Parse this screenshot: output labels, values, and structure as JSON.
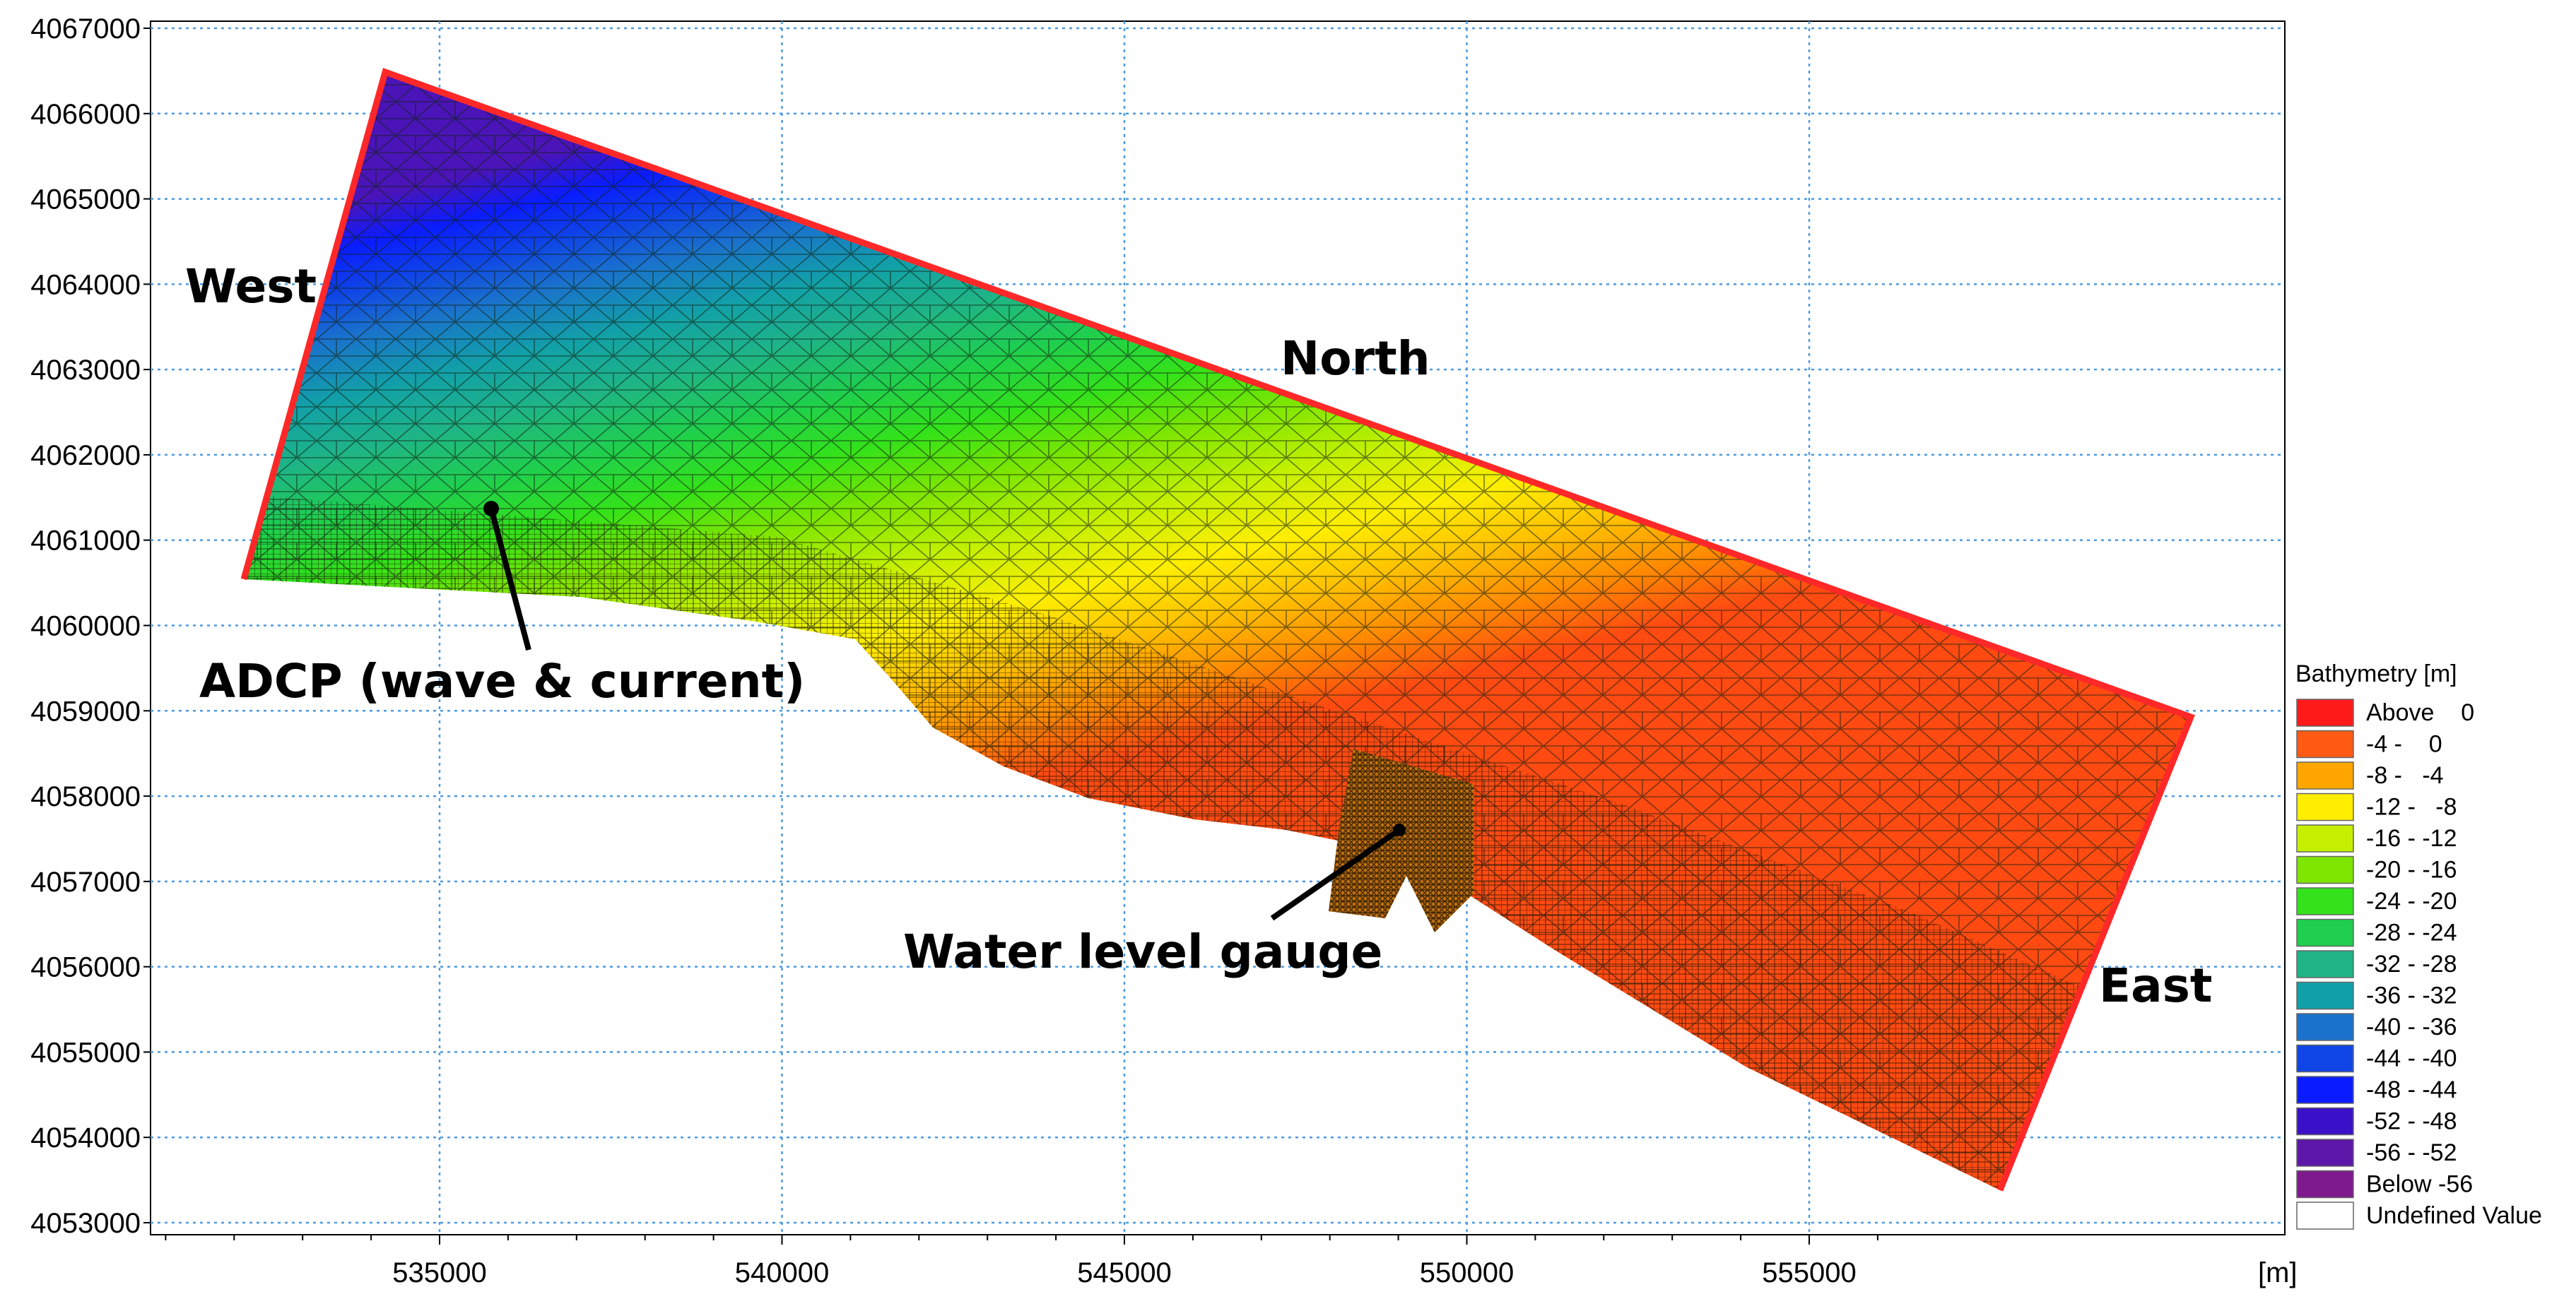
{
  "map": {
    "x_axis": {
      "ticks": [
        "535000",
        "540000",
        "545000",
        "550000",
        "555000"
      ],
      "unit": "[m]"
    },
    "y_axis": {
      "ticks": [
        "4053000",
        "4054000",
        "4055000",
        "4056000",
        "4057000",
        "4058000",
        "4059000",
        "4060000",
        "4061000",
        "4062000",
        "4063000",
        "4064000",
        "4065000",
        "4066000",
        "4067000"
      ]
    },
    "labels": {
      "west": "West",
      "north": "North",
      "east": "East",
      "adcp": "ADCP (wave & current)",
      "gauge": "Water level gauge"
    },
    "boundary_color": "#ff3030",
    "grid_color": "#4a9ae0"
  },
  "legend": {
    "title": "Bathymetry [m]",
    "items": [
      {
        "label": "Above    0",
        "color": "#ff1a1a"
      },
      {
        "label": "-4 -    0",
        "color": "#ff5a14"
      },
      {
        "label": "-8 -   -4",
        "color": "#ffa600"
      },
      {
        "label": "-12 -   -8",
        "color": "#ffee00"
      },
      {
        "label": "-16 - -12",
        "color": "#c4f000"
      },
      {
        "label": "-20 - -16",
        "color": "#7ee600"
      },
      {
        "label": "-24 - -20",
        "color": "#33e21a"
      },
      {
        "label": "-28 - -24",
        "color": "#1fcf4d"
      },
      {
        "label": "-32 - -28",
        "color": "#1fb585"
      },
      {
        "label": "-36 - -32",
        "color": "#12a0a8"
      },
      {
        "label": "-40 - -36",
        "color": "#1a72cc"
      },
      {
        "label": "-44 - -40",
        "color": "#0f45e6"
      },
      {
        "label": "-48 - -44",
        "color": "#0a1cff"
      },
      {
        "label": "-52 - -48",
        "color": "#3a10c9"
      },
      {
        "label": "-56 - -52",
        "color": "#5c17a8"
      },
      {
        "label": "Below -56",
        "color": "#7e1a8e"
      },
      {
        "label": "Undefined Value",
        "color": "#ffffff"
      }
    ]
  }
}
